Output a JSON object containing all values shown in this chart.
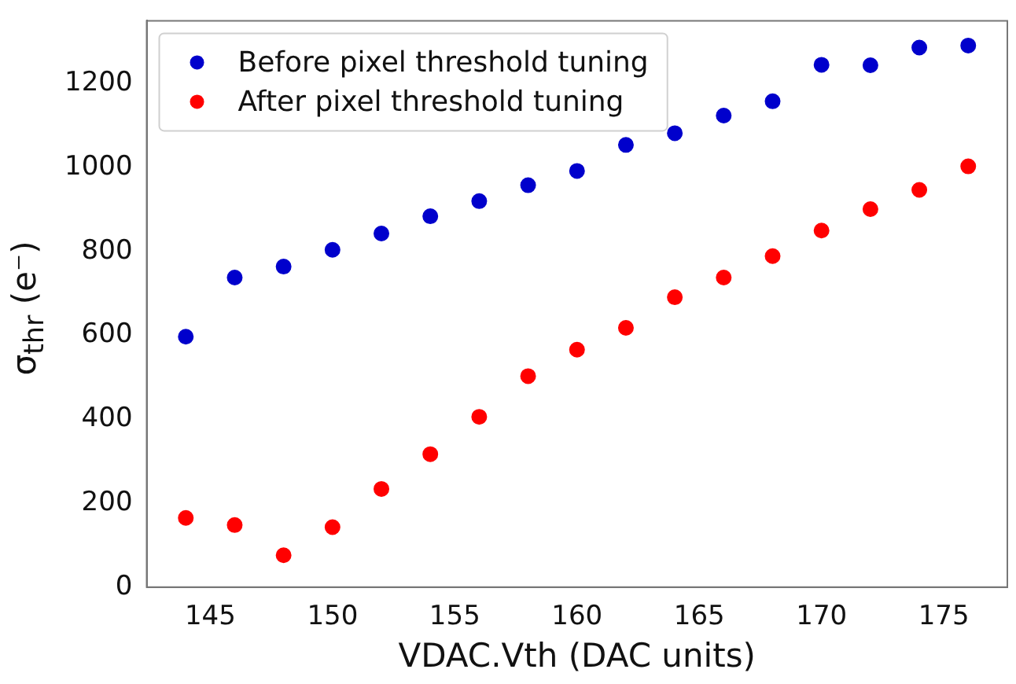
{
  "chart_data": {
    "type": "scatter",
    "xlabel": "VDAC.Vth (DAC units)",
    "ylabel": "σ$_{thr}$ (e⁻)",
    "x": [
      144,
      146,
      148,
      150,
      152,
      154,
      156,
      158,
      160,
      162,
      164,
      166,
      168,
      170,
      172,
      174,
      176
    ],
    "series": [
      {
        "name": "Before pixel threshold tuning",
        "color": "#0000cc",
        "values": [
          597,
          738,
          764,
          804,
          843,
          884,
          920,
          958,
          992,
          1054,
          1082,
          1124,
          1158,
          1245,
          1244,
          1286,
          1291
        ]
      },
      {
        "name": "After pixel threshold tuning",
        "color": "#ff0000",
        "values": [
          165,
          148,
          76,
          143,
          234,
          317,
          406,
          503,
          566,
          618,
          691,
          738,
          789,
          850,
          901,
          947,
          1003
        ]
      }
    ],
    "xlim": [
      142.4,
      177.6
    ],
    "xticks": [
      145,
      150,
      155,
      160,
      165,
      170,
      175
    ],
    "ylim": [
      0,
      1350
    ],
    "yticks": [
      0,
      200,
      400,
      600,
      800,
      1000,
      1200
    ],
    "marker": "circle",
    "legend": "top left",
    "grid": false
  }
}
